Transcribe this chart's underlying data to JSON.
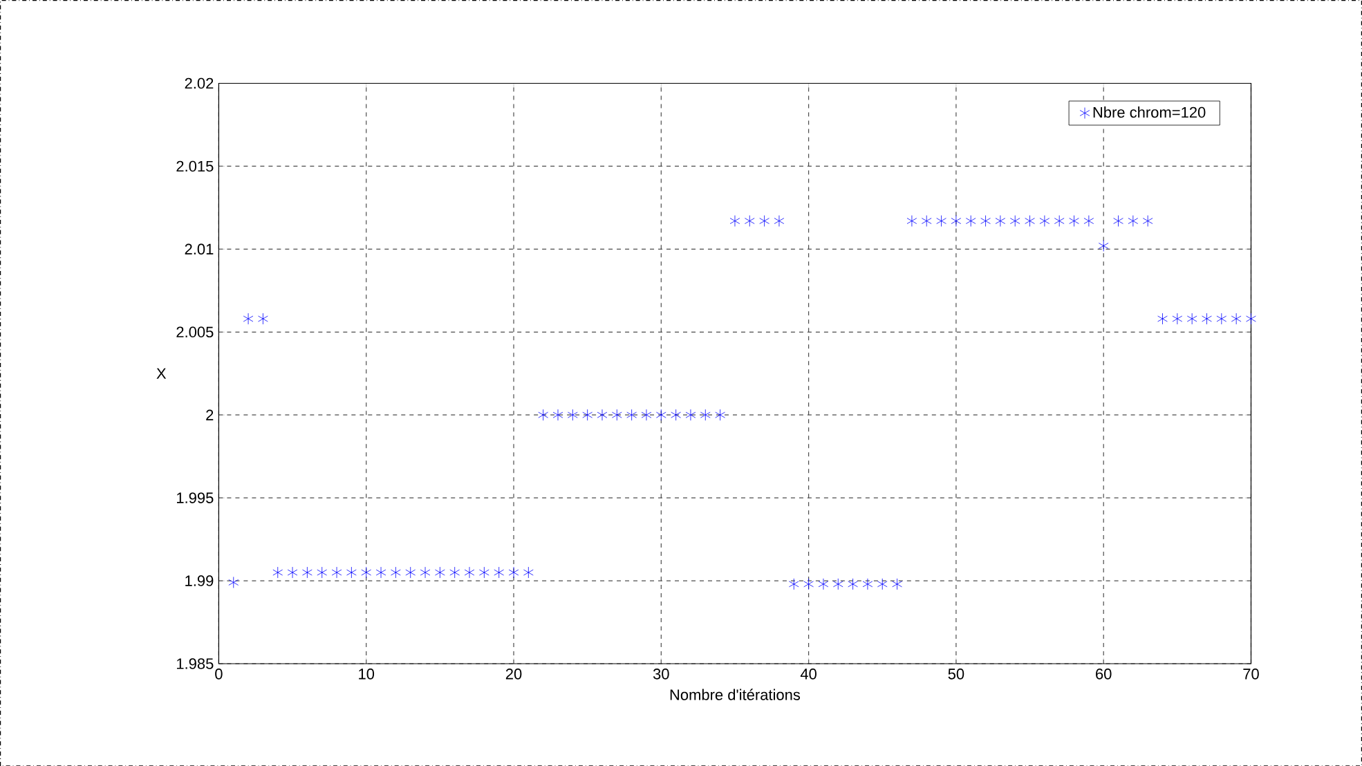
{
  "chart_data": {
    "type": "scatter",
    "xlabel": "Nombre d'itérations",
    "ylabel": "X",
    "x": [
      1,
      2,
      3,
      4,
      5,
      6,
      7,
      8,
      9,
      10,
      11,
      12,
      13,
      14,
      15,
      16,
      17,
      18,
      19,
      20,
      21,
      22,
      23,
      24,
      25,
      26,
      27,
      28,
      29,
      30,
      31,
      32,
      33,
      34,
      35,
      36,
      37,
      38,
      39,
      40,
      41,
      42,
      43,
      44,
      45,
      46,
      47,
      48,
      49,
      50,
      51,
      52,
      53,
      54,
      55,
      56,
      57,
      58,
      59,
      60,
      61,
      62,
      63,
      64,
      65,
      66,
      67,
      68,
      69,
      70
    ],
    "series": [
      {
        "name": "Nbre chrom=120",
        "color": "#0000ff",
        "values": [
          1.9899,
          2.0058,
          2.0058,
          1.9905,
          1.9905,
          1.9905,
          1.9905,
          1.9905,
          1.9905,
          1.9905,
          1.9905,
          1.9905,
          1.9905,
          1.9905,
          1.9905,
          1.9905,
          1.9905,
          1.9905,
          1.9905,
          1.9905,
          1.9905,
          2.0,
          2.0,
          2.0,
          2.0,
          2.0,
          2.0,
          2.0,
          2.0,
          2.0,
          2.0,
          2.0,
          2.0,
          2.0,
          2.0117,
          2.0117,
          2.0117,
          2.0117,
          1.9898,
          1.9898,
          1.9898,
          1.9898,
          1.9898,
          1.9898,
          1.9898,
          1.9898,
          2.0117,
          2.0117,
          2.0117,
          2.0117,
          2.0117,
          2.0117,
          2.0117,
          2.0117,
          2.0117,
          2.0117,
          2.0117,
          2.0117,
          2.0117,
          2.0102,
          2.0117,
          2.0117,
          2.0117,
          2.0058,
          2.0058,
          2.0058,
          2.0058,
          2.0058,
          2.0058,
          2.0058
        ]
      }
    ],
    "xlim": [
      0,
      70
    ],
    "ylim": [
      1.985,
      2.02
    ],
    "xticks": [
      0,
      10,
      20,
      30,
      40,
      50,
      60,
      70
    ],
    "yticks": [
      1.985,
      1.99,
      1.995,
      2,
      2.005,
      2.01,
      2.015,
      2.02
    ],
    "grid": true,
    "legend": "top right",
    "marker": "cross",
    "line_style": "none"
  }
}
